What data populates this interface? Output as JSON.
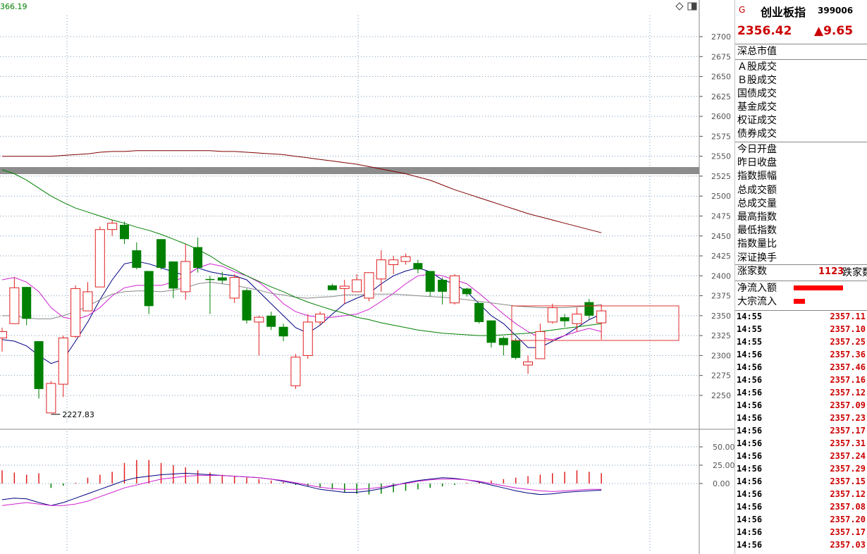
{
  "top_left_label": "366.19",
  "top_right_icons": [
    "diamond-icon",
    "window-icon"
  ],
  "chart_data": [
    {
      "type": "candlestick",
      "ylim": [
        2225,
        2715
      ],
      "yticks": [
        "2700",
        "2675",
        "2650",
        "2625",
        "2600",
        "2575",
        "2550",
        "2525",
        "2500",
        "2475",
        "2450",
        "2425",
        "2400",
        "2375",
        "2350",
        "2325",
        "2300",
        "2275",
        "2250"
      ],
      "low_annotation": "2227.83",
      "candles": [
        {
          "o": 2322,
          "h": 2335,
          "l": 2305,
          "c": 2330
        },
        {
          "o": 2340,
          "h": 2398,
          "l": 2340,
          "c": 2385
        },
        {
          "o": 2386,
          "h": 2386,
          "l": 2338,
          "c": 2346
        },
        {
          "o": 2318,
          "h": 2318,
          "l": 2246,
          "c": 2258
        },
        {
          "o": 2228,
          "h": 2268,
          "l": 2228,
          "c": 2265
        },
        {
          "o": 2264,
          "h": 2325,
          "l": 2248,
          "c": 2322
        },
        {
          "o": 2324,
          "h": 2388,
          "l": 2322,
          "c": 2384
        },
        {
          "o": 2356,
          "h": 2392,
          "l": 2356,
          "c": 2380
        },
        {
          "o": 2386,
          "h": 2462,
          "l": 2386,
          "c": 2458
        },
        {
          "o": 2458,
          "h": 2470,
          "l": 2450,
          "c": 2466
        },
        {
          "o": 2464,
          "h": 2468,
          "l": 2440,
          "c": 2446
        },
        {
          "o": 2432,
          "h": 2442,
          "l": 2408,
          "c": 2410
        },
        {
          "o": 2406,
          "h": 2406,
          "l": 2352,
          "c": 2362
        },
        {
          "o": 2446,
          "h": 2446,
          "l": 2408,
          "c": 2410
        },
        {
          "o": 2418,
          "h": 2418,
          "l": 2372,
          "c": 2384
        },
        {
          "o": 2380,
          "h": 2440,
          "l": 2370,
          "c": 2418
        },
        {
          "o": 2436,
          "h": 2448,
          "l": 2404,
          "c": 2410
        },
        {
          "o": 2396,
          "h": 2400,
          "l": 2352,
          "c": 2395
        },
        {
          "o": 2398,
          "h": 2405,
          "l": 2390,
          "c": 2394
        },
        {
          "o": 2372,
          "h": 2402,
          "l": 2366,
          "c": 2398
        },
        {
          "o": 2382,
          "h": 2384,
          "l": 2340,
          "c": 2344
        },
        {
          "o": 2342,
          "h": 2350,
          "l": 2300,
          "c": 2348
        },
        {
          "o": 2350,
          "h": 2355,
          "l": 2332,
          "c": 2336
        },
        {
          "o": 2336,
          "h": 2340,
          "l": 2318,
          "c": 2324
        },
        {
          "o": 2262,
          "h": 2302,
          "l": 2258,
          "c": 2298
        },
        {
          "o": 2300,
          "h": 2352,
          "l": 2296,
          "c": 2342
        },
        {
          "o": 2342,
          "h": 2355,
          "l": 2338,
          "c": 2352
        },
        {
          "o": 2388,
          "h": 2390,
          "l": 2386,
          "c": 2382
        },
        {
          "o": 2384,
          "h": 2395,
          "l": 2365,
          "c": 2387
        },
        {
          "o": 2380,
          "h": 2402,
          "l": 2380,
          "c": 2395
        },
        {
          "o": 2372,
          "h": 2400,
          "l": 2368,
          "c": 2404
        },
        {
          "o": 2396,
          "h": 2432,
          "l": 2380,
          "c": 2420
        },
        {
          "o": 2414,
          "h": 2425,
          "l": 2402,
          "c": 2420
        },
        {
          "o": 2418,
          "h": 2428,
          "l": 2414,
          "c": 2424
        },
        {
          "o": 2416,
          "h": 2420,
          "l": 2403,
          "c": 2408
        },
        {
          "o": 2406,
          "h": 2406,
          "l": 2374,
          "c": 2380
        },
        {
          "o": 2395,
          "h": 2398,
          "l": 2364,
          "c": 2380
        },
        {
          "o": 2366,
          "h": 2402,
          "l": 2364,
          "c": 2400
        },
        {
          "o": 2384,
          "h": 2385,
          "l": 2374,
          "c": 2377
        },
        {
          "o": 2366,
          "h": 2366,
          "l": 2340,
          "c": 2342
        },
        {
          "o": 2344,
          "h": 2344,
          "l": 2310,
          "c": 2316
        },
        {
          "o": 2322,
          "h": 2324,
          "l": 2300,
          "c": 2313
        },
        {
          "o": 2319,
          "h": 2322,
          "l": 2295,
          "c": 2297
        },
        {
          "o": 2288,
          "h": 2300,
          "l": 2277,
          "c": 2292
        },
        {
          "o": 2296,
          "h": 2340,
          "l": 2296,
          "c": 2330
        },
        {
          "o": 2342,
          "h": 2365,
          "l": 2340,
          "c": 2360
        },
        {
          "o": 2348,
          "h": 2352,
          "l": 2336,
          "c": 2343
        },
        {
          "o": 2340,
          "h": 2360,
          "l": 2330,
          "c": 2352
        },
        {
          "o": 2367,
          "h": 2371,
          "l": 2346,
          "c": 2350
        },
        {
          "o": 2341,
          "h": 2364,
          "l": 2320,
          "c": 2356
        }
      ],
      "ma_lines": [
        {
          "color": "#000080",
          "values": [
            2320,
            2318,
            2312,
            2300,
            2290,
            2295,
            2318,
            2342,
            2370,
            2395,
            2415,
            2418,
            2415,
            2410,
            2405,
            2400,
            2410,
            2405,
            2402,
            2400,
            2395,
            2380,
            2365,
            2350,
            2335,
            2328,
            2338,
            2352,
            2365,
            2372,
            2378,
            2390,
            2400,
            2406,
            2410,
            2405,
            2395,
            2390,
            2380,
            2365,
            2350,
            2340,
            2325,
            2310,
            2310,
            2318,
            2325,
            2335,
            2345,
            2352
          ]
        },
        {
          "color": "#d020d0",
          "values": [
            2395,
            2398,
            2392,
            2380,
            2360,
            2348,
            2345,
            2350,
            2360,
            2375,
            2385,
            2388,
            2388,
            2388,
            2392,
            2400,
            2410,
            2415,
            2412,
            2405,
            2400,
            2392,
            2380,
            2365,
            2355,
            2350,
            2348,
            2348,
            2350,
            2352,
            2358,
            2368,
            2378,
            2390,
            2400,
            2402,
            2400,
            2395,
            2390,
            2378,
            2365,
            2352,
            2340,
            2330,
            2322,
            2320,
            2325,
            2330,
            2334,
            2330
          ]
        },
        {
          "color": "#888888",
          "values": [
            2350,
            2350,
            2347,
            2346,
            2346,
            2350,
            2355,
            2362,
            2370,
            2377,
            2380,
            2381,
            2381,
            2380,
            2382,
            2385,
            2390,
            2392,
            2390,
            2388,
            2385,
            2382,
            2378,
            2376,
            2373,
            2372,
            2373,
            2374,
            2376,
            2376,
            2377,
            2377,
            2377,
            2376,
            2375,
            2374,
            2373,
            2372,
            2370,
            2368,
            2366,
            2364,
            2362,
            2361,
            2360,
            2360,
            2360,
            2361,
            2362,
            2364
          ]
        },
        {
          "color": "#008000",
          "values": [
            2533,
            2528,
            2520,
            2510,
            2500,
            2492,
            2485,
            2480,
            2475,
            2470,
            2466,
            2461,
            2457,
            2452,
            2446,
            2440,
            2433,
            2425,
            2415,
            2408,
            2400,
            2393,
            2386,
            2380,
            2373,
            2367,
            2362,
            2357,
            2353,
            2348,
            2345,
            2341,
            2338,
            2335,
            2332,
            2330,
            2328,
            2327,
            2326,
            2325,
            2325,
            2326,
            2327,
            2328,
            2330,
            2332,
            2334,
            2336,
            2338,
            2340
          ]
        },
        {
          "color": "#800000",
          "values": [
            2550,
            2550,
            2550,
            2550,
            2550,
            2551,
            2552,
            2553,
            2555,
            2556,
            2556,
            2557,
            2557,
            2557,
            2557,
            2557,
            2557,
            2557,
            2556,
            2556,
            2555,
            2554,
            2553,
            2552,
            2550,
            2548,
            2546,
            2544,
            2542,
            2540,
            2537,
            2534,
            2531,
            2528,
            2524,
            2520,
            2514,
            2508,
            2503,
            2498,
            2493,
            2488,
            2483,
            2478,
            2474,
            2470,
            2466,
            2462,
            2458,
            2454
          ]
        }
      ]
    },
    {
      "type": "bar",
      "ylim": [
        -40,
        60
      ],
      "yticks": [
        "50.00",
        "25.00",
        "0.00"
      ],
      "values": [
        18,
        15,
        12,
        14,
        -6,
        -3,
        1,
        8,
        12,
        16,
        28,
        32,
        32,
        28,
        25,
        22,
        18,
        15,
        12,
        10,
        8,
        6,
        4,
        2,
        -2,
        -4,
        -6,
        -8,
        -12,
        -14,
        -15,
        -14,
        -12,
        -10,
        -8,
        -6,
        -4,
        -2,
        1,
        2,
        4,
        6,
        8,
        10,
        12,
        14,
        16,
        18,
        16,
        14
      ],
      "lines": [
        {
          "color": "#000080",
          "values": [
            -22,
            -20,
            -21,
            -26,
            -30,
            -26,
            -20,
            -14,
            -8,
            -2,
            4,
            8,
            10,
            12,
            13,
            14,
            13,
            12,
            11,
            10,
            9,
            8,
            6,
            3,
            0,
            -4,
            -8,
            -10,
            -12,
            -12,
            -10,
            -7,
            -3,
            1,
            4,
            6,
            8,
            7,
            5,
            2,
            -2,
            -6,
            -10,
            -13,
            -15,
            -14,
            -12,
            -11,
            -10,
            -9
          ]
        },
        {
          "color": "#d020d0",
          "values": [
            -30,
            -28,
            -26,
            -28,
            -30,
            -30,
            -28,
            -24,
            -18,
            -12,
            -6,
            -2,
            2,
            6,
            8,
            10,
            11,
            11,
            11,
            10,
            9,
            8,
            6,
            4,
            1,
            -2,
            -5,
            -7,
            -8,
            -8,
            -7,
            -5,
            -2,
            0,
            3,
            5,
            6,
            6,
            5,
            3,
            0,
            -3,
            -6,
            -8,
            -10,
            -11,
            -10,
            -9,
            -8,
            -8
          ]
        }
      ]
    }
  ],
  "side": {
    "badge": "G",
    "name": "创业板指",
    "code": "399006",
    "price": "2356.42",
    "change": "▲9.65",
    "labels_group1": [
      "深总市值"
    ],
    "labels_group2": [
      "Ａ股成交",
      "Ｂ股成交",
      "国债成交",
      "基金成交",
      "权证成交",
      "债券成交"
    ],
    "labels_group3": [
      "今日开盘",
      "昨日收盘",
      "指数振幅",
      "总成交额",
      "总成交量",
      "最高指数",
      "最低指数",
      "指数量比",
      "深证换手"
    ],
    "up_label": "涨家数",
    "up_count": "1123",
    "down_label": "跌家数",
    "flow1_label": "净流入额",
    "flow2_label": "大宗流入",
    "flow1_ratio": 0.62,
    "flow2_ratio": 0.14,
    "ticks": [
      {
        "time": "14:55",
        "price": "2357.11"
      },
      {
        "time": "14:55",
        "price": "2357.10"
      },
      {
        "time": "14:55",
        "price": "2357.25"
      },
      {
        "time": "14:56",
        "price": "2357.36"
      },
      {
        "time": "14:56",
        "price": "2357.46"
      },
      {
        "time": "14:56",
        "price": "2357.16"
      },
      {
        "time": "14:56",
        "price": "2357.12"
      },
      {
        "time": "14:56",
        "price": "2357.09"
      },
      {
        "time": "14:56",
        "price": "2357.23"
      },
      {
        "time": "14:56",
        "price": "2357.17"
      },
      {
        "time": "14:56",
        "price": "2357.31"
      },
      {
        "time": "14:56",
        "price": "2357.24"
      },
      {
        "time": "14:56",
        "price": "2357.29"
      },
      {
        "time": "14:56",
        "price": "2357.15"
      },
      {
        "time": "14:56",
        "price": "2357.12"
      },
      {
        "time": "14:56",
        "price": "2357.08"
      },
      {
        "time": "14:56",
        "price": "2357.20"
      },
      {
        "time": "14:56",
        "price": "2357.17"
      },
      {
        "time": "14:56",
        "price": "2357.03"
      }
    ]
  }
}
